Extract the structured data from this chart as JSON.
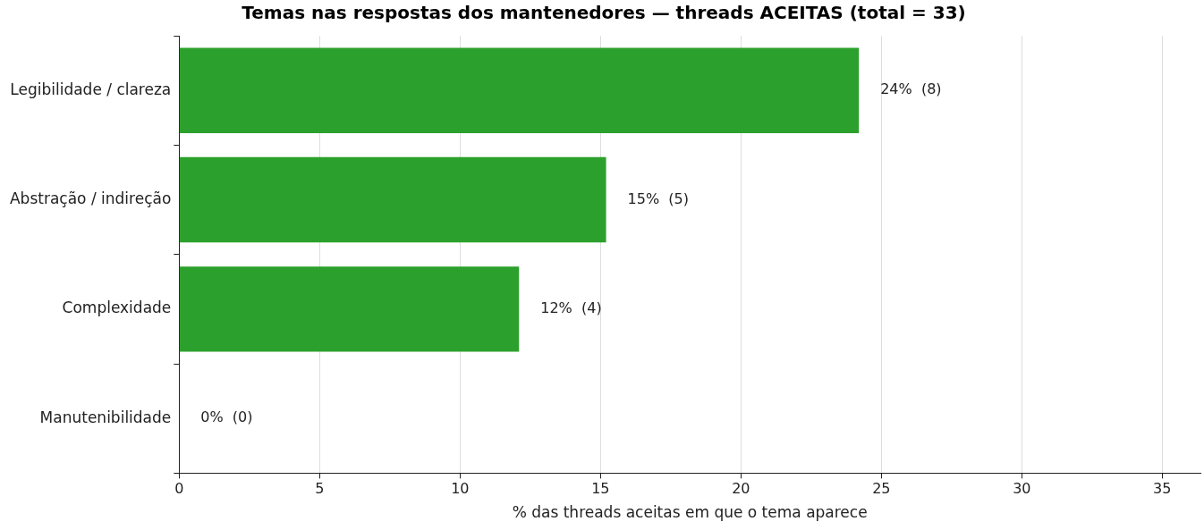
{
  "chart_data": {
    "type": "bar",
    "orientation": "horizontal",
    "title": "Temas nas respostas dos mantenedores — threads ACEITAS (total = 33)",
    "xlabel": "% das threads aceitas em que o tema aparece",
    "categories": [
      "Legibilidade / clareza",
      "Abstração / indireção",
      "Complexidade",
      "Manutenibilidade"
    ],
    "values": [
      24.2,
      15.2,
      12.1,
      0
    ],
    "value_labels": [
      "24%  (8)",
      "15%  (5)",
      "12%  (4)",
      "0%  (0)"
    ],
    "color": "#2ca02c",
    "xlim": [
      0,
      36.36
    ],
    "xticks": [
      0,
      5,
      10,
      15,
      20,
      25,
      30,
      35
    ],
    "grid": "x",
    "legend": false
  }
}
